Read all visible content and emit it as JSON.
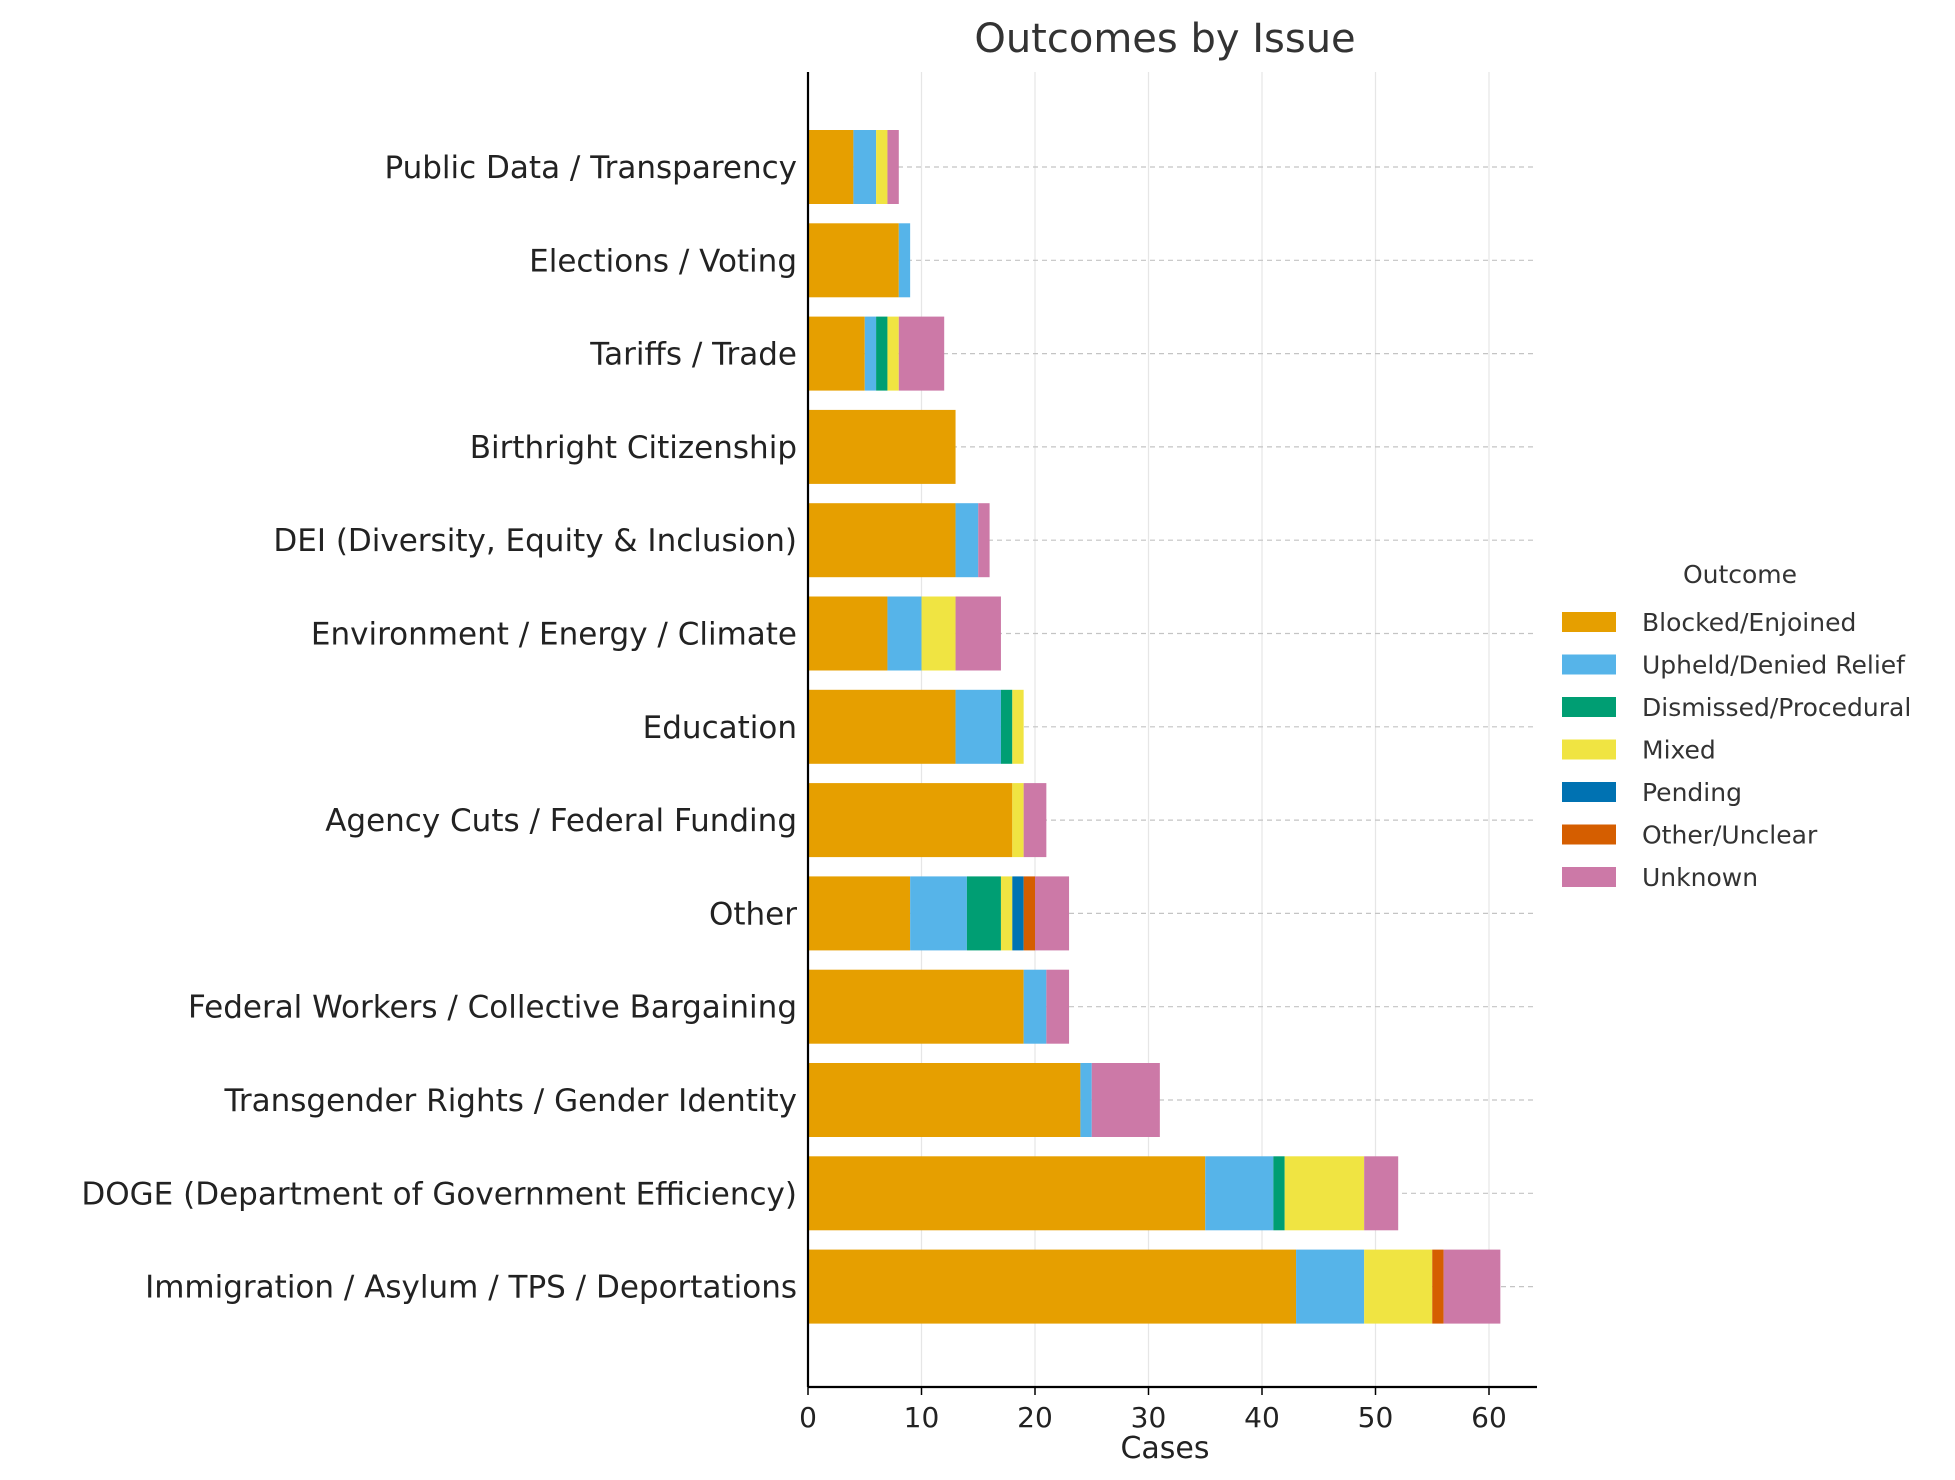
{
  "chart_data": {
    "type": "bar",
    "orientation": "horizontal",
    "stacked": true,
    "title": "Outcomes by Issue",
    "xlabel": "Cases",
    "ylabel": "",
    "xlim": [
      0,
      64
    ],
    "xticks": [
      0,
      10,
      20,
      30,
      40,
      50,
      60
    ],
    "grid": true,
    "legend_title": "Outcome",
    "legend_position": "center-right outside",
    "categories": [
      "Public Data / Transparency",
      "Elections / Voting",
      "Tariffs / Trade",
      "Birthright Citizenship",
      "DEI (Diversity, Equity & Inclusion)",
      "Environment / Energy / Climate",
      "Education",
      "Agency Cuts / Federal Funding",
      "Other",
      "Federal Workers / Collective Bargaining",
      "Transgender Rights / Gender Identity",
      "DOGE (Department of Government Efficiency)",
      "Immigration / Asylum / TPS / Deportations"
    ],
    "series": [
      {
        "name": "Blocked/Enjoined",
        "color": "#E69F00",
        "values": [
          4,
          8,
          5,
          13,
          13,
          7,
          13,
          18,
          9,
          19,
          24,
          35,
          43
        ]
      },
      {
        "name": "Upheld/Denied Relief",
        "color": "#56B4E9",
        "values": [
          2,
          1,
          1,
          0,
          2,
          3,
          4,
          0,
          5,
          2,
          1,
          6,
          6
        ]
      },
      {
        "name": "Dismissed/Procedural",
        "color": "#009E73",
        "values": [
          0,
          0,
          1,
          0,
          0,
          0,
          1,
          0,
          3,
          0,
          0,
          1,
          0
        ]
      },
      {
        "name": "Mixed",
        "color": "#F0E442",
        "values": [
          1,
          0,
          1,
          0,
          0,
          3,
          1,
          1,
          1,
          0,
          0,
          7,
          6
        ]
      },
      {
        "name": "Pending",
        "color": "#0072B2",
        "values": [
          0,
          0,
          0,
          0,
          0,
          0,
          0,
          0,
          1,
          0,
          0,
          0,
          0
        ]
      },
      {
        "name": "Other/Unclear",
        "color": "#D55E00",
        "values": [
          0,
          0,
          0,
          0,
          0,
          0,
          0,
          0,
          1,
          0,
          0,
          0,
          1
        ]
      },
      {
        "name": "Unknown",
        "color": "#CC79A7",
        "values": [
          1,
          0,
          4,
          0,
          1,
          4,
          0,
          2,
          3,
          2,
          6,
          3,
          5
        ]
      }
    ]
  }
}
